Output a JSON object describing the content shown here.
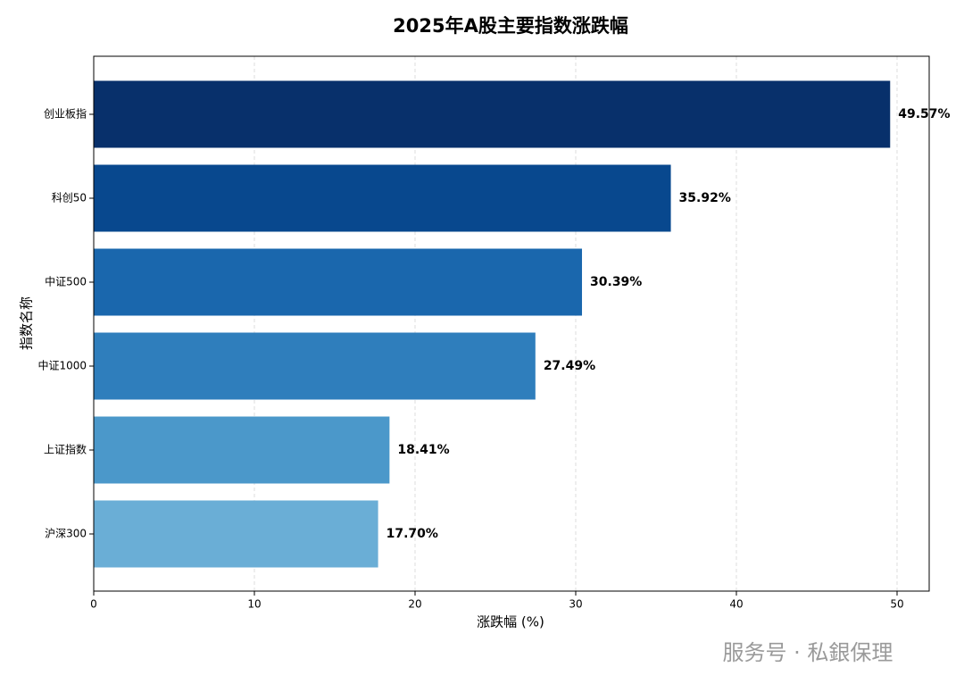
{
  "chart_data": {
    "type": "barh",
    "title": "2025年A股主要指数涨跌幅",
    "categories": [
      "创业板指",
      "科创50",
      "中证500",
      "中证1000",
      "上证指数",
      "沪深300"
    ],
    "values": [
      49.57,
      35.92,
      30.39,
      27.49,
      18.41,
      17.7
    ],
    "value_labels": [
      "49.57%",
      "35.92%",
      "30.39%",
      "27.49%",
      "18.41%",
      "17.70%"
    ],
    "colors": [
      "#08306b",
      "#08488e",
      "#1a67ad",
      "#2f7ebc",
      "#4b98ca",
      "#6aaed6"
    ],
    "xlabel": "涨跌幅 (%)",
    "ylabel": "指数名称",
    "xlim": [
      0,
      52
    ],
    "xticks": [
      0,
      10,
      20,
      30,
      40,
      50
    ],
    "grid": true
  },
  "watermark": "服务号 · 私銀保理"
}
